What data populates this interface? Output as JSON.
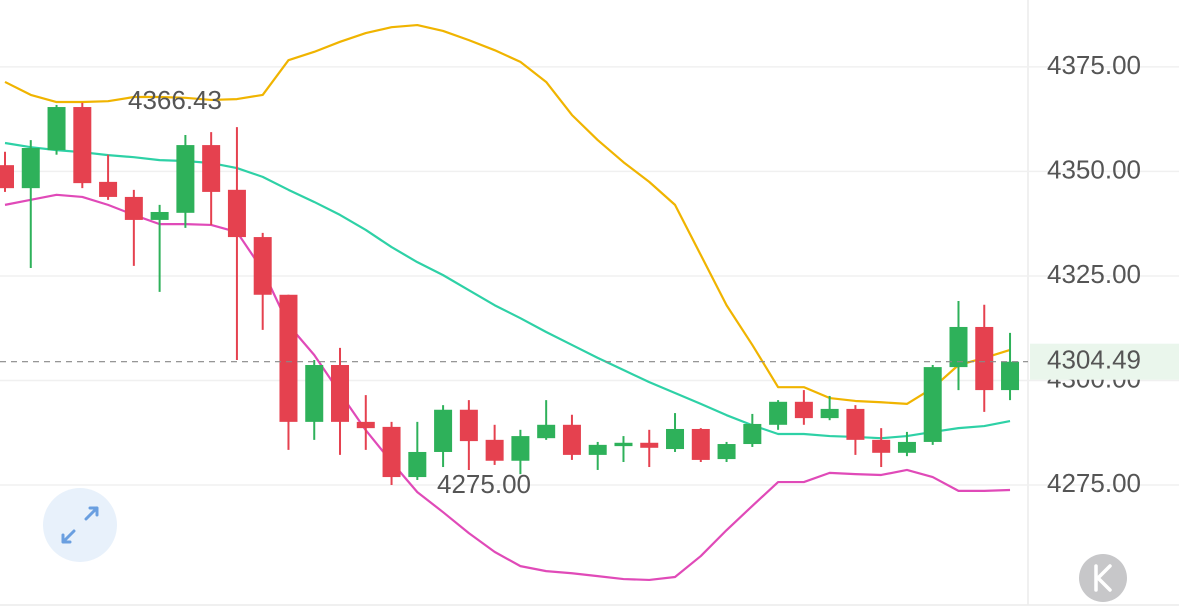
{
  "chart_data": {
    "type": "candlestick",
    "open": [
      4351.5,
      4346.0,
      4355.1,
      4365.4,
      4347.5,
      4343.9,
      4338.4,
      4340.1,
      4356.3,
      4345.6,
      4334.3,
      4320.5,
      4290.1,
      4303.7,
      4290.1,
      4288.9,
      4276.9,
      4282.9,
      4293.0,
      4285.8,
      4280.8,
      4286.2,
      4289.4,
      4282.2,
      4284.3,
      4285.1,
      4283.6,
      4288.4,
      4281.2,
      4284.8,
      4289.4,
      4294.9,
      4291.0,
      4293.2,
      4285.8,
      4282.7,
      4285.3,
      4303.2,
      4312.8,
      4297.7
    ],
    "high": [
      4354.7,
      4357.5,
      4365.9,
      4366.43,
      4354.0,
      4345.6,
      4342.0,
      4358.7,
      4359.4,
      4360.6,
      4335.3,
      4320.5,
      4304.9,
      4307.8,
      4296.5,
      4290.1,
      4290.1,
      4294.1,
      4295.3,
      4289.4,
      4288.2,
      4295.3,
      4291.8,
      4285.3,
      4286.7,
      4288.2,
      4292.2,
      4288.6,
      4285.3,
      4292.0,
      4295.3,
      4297.7,
      4296.3,
      4294.1,
      4288.6,
      4287.7,
      4303.7,
      4319.0,
      4318.1,
      4311.4
    ],
    "low": [
      4345.1,
      4326.9,
      4354.0,
      4346.0,
      4343.2,
      4327.4,
      4321.2,
      4336.5,
      4337.2,
      4304.9,
      4312.1,
      4283.4,
      4285.8,
      4282.2,
      4283.4,
      4275.0,
      4276.2,
      4279.3,
      4278.6,
      4279.8,
      4277.6,
      4285.8,
      4281.0,
      4278.6,
      4280.5,
      4279.3,
      4282.9,
      4280.5,
      4280.5,
      4284.1,
      4288.2,
      4289.4,
      4290.5,
      4282.2,
      4279.3,
      4281.9,
      4284.6,
      4297.7,
      4292.5,
      4295.3
    ],
    "close": [
      4346.0,
      4355.6,
      4365.4,
      4347.2,
      4343.9,
      4338.4,
      4340.3,
      4356.3,
      4345.1,
      4334.3,
      4320.5,
      4290.1,
      4303.7,
      4290.1,
      4288.6,
      4276.9,
      4282.9,
      4293.0,
      4285.5,
      4280.8,
      4286.7,
      4289.4,
      4282.2,
      4284.6,
      4285.1,
      4283.9,
      4288.4,
      4281.0,
      4284.8,
      4289.6,
      4294.9,
      4291.0,
      4293.2,
      4285.8,
      4282.7,
      4285.3,
      4303.2,
      4312.8,
      4297.7,
      4304.49
    ],
    "up_color": "#2eb15a",
    "down_color": "#e5414f",
    "lines": [
      {
        "color": "#f0b400",
        "values": [
          4371.4,
          4368.3,
          4366.6,
          4366.6,
          4366.8,
          4367.8,
          4367.8,
          4367.6,
          4367.1,
          4367.3,
          4368.3,
          4376.6,
          4378.6,
          4381.0,
          4383.1,
          4384.5,
          4385.0,
          4383.6,
          4381.4,
          4379.0,
          4376.2,
          4371.4,
          4363.5,
          4357.5,
          4352.2,
          4347.5,
          4342.0,
          4330.0,
          4318.0,
          4308.5,
          4298.4,
          4298.4,
          4295.8,
          4295.1,
          4294.8,
          4294.4,
          4298.2,
          4303.7,
          4305.4,
          4307.3
        ]
      },
      {
        "color": "#2ed1a6",
        "values": [
          4356.8,
          4355.8,
          4355.1,
          4354.6,
          4353.9,
          4353.4,
          4352.7,
          4352.5,
          4352.0,
          4350.8,
          4348.7,
          4345.6,
          4342.7,
          4339.6,
          4336.0,
          4331.9,
          4328.3,
          4325.2,
          4321.6,
          4318.0,
          4314.9,
          4311.6,
          4308.5,
          4305.4,
          4302.5,
          4299.6,
          4297.0,
          4294.4,
          4291.7,
          4289.3,
          4287.2,
          4287.2,
          4286.7,
          4286.5,
          4286.2,
          4286.7,
          4287.7,
          4288.6,
          4289.1,
          4290.3
        ]
      },
      {
        "color": "#e04ab8",
        "values": [
          4342.0,
          4343.2,
          4344.4,
          4343.9,
          4342.0,
          4339.6,
          4337.4,
          4337.4,
          4337.2,
          4335.5,
          4326.4,
          4313.3,
          4306.1,
          4297.0,
          4288.1,
          4280.5,
          4273.3,
          4268.5,
          4263.5,
          4259.0,
          4255.6,
          4254.4,
          4253.9,
          4253.2,
          4252.5,
          4252.3,
          4253.0,
          4258.0,
          4264.2,
          4270.0,
          4275.7,
          4275.7,
          4277.9,
          4277.6,
          4277.4,
          4278.6,
          4276.9,
          4273.6,
          4273.6,
          4273.8
        ]
      }
    ],
    "ylim": [
      4246.3,
      4391.0
    ],
    "yticks": [
      {
        "value": 4275,
        "label": "4275.00"
      },
      {
        "value": 4300,
        "label": "4300.00"
      },
      {
        "value": 4325,
        "label": "4325.00"
      },
      {
        "value": 4350,
        "label": "4350.00"
      },
      {
        "value": 4375,
        "label": "4375.00"
      }
    ],
    "grid": true,
    "high_label": "4366.43",
    "low_label": "4275.00",
    "last_price": {
      "value": 4304.49,
      "label": "4304.49"
    },
    "last_price_color": "#27a64b"
  }
}
